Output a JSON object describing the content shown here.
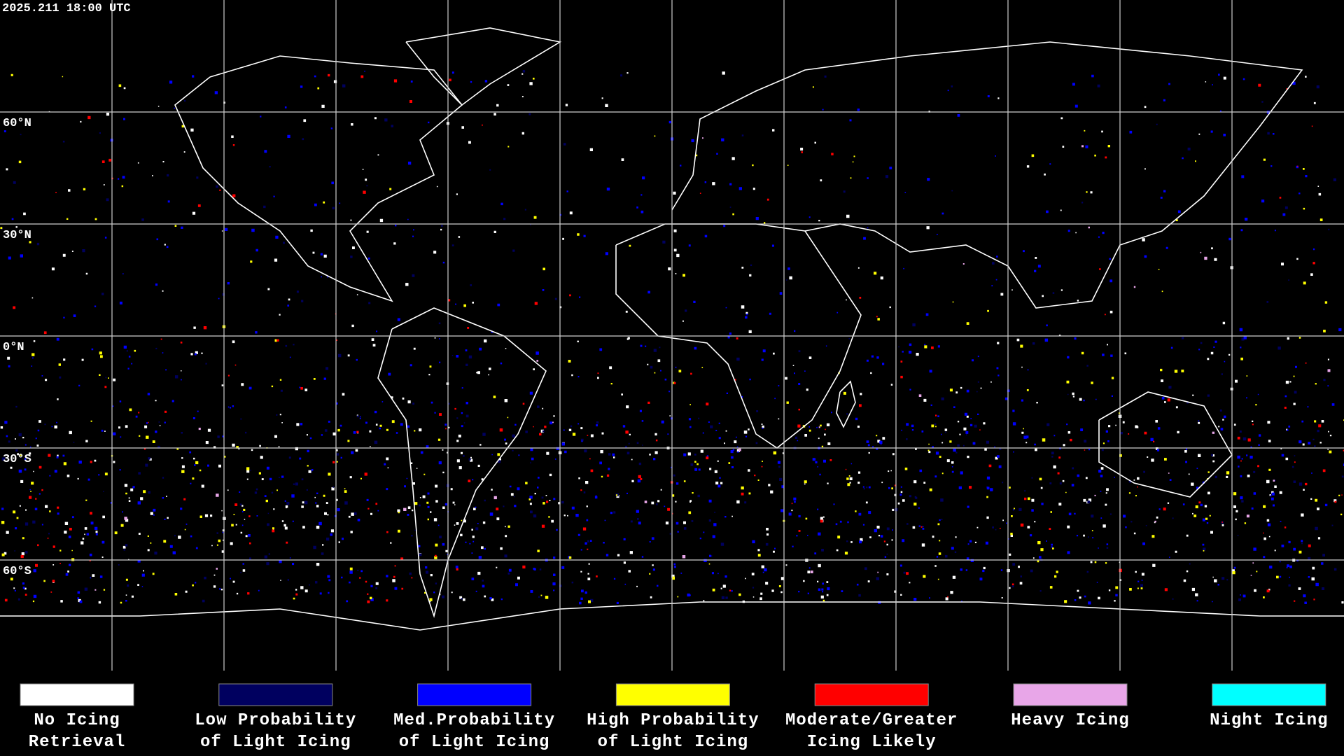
{
  "header": {
    "timestamp": "2025.211 18:00 UTC"
  },
  "map": {
    "latitude_labels": [
      "60°N",
      "30°N",
      "0°N",
      "30°S",
      "60°S"
    ]
  },
  "legend": [
    {
      "color": "#ffffff",
      "label": [
        "No Icing",
        "Retrieval"
      ]
    },
    {
      "color": "#00005f",
      "label": [
        "Low Probability",
        "of Light Icing"
      ]
    },
    {
      "color": "#0000ff",
      "label": [
        "Med.Probability",
        "of Light Icing"
      ]
    },
    {
      "color": "#ffff00",
      "label": [
        "High Probability",
        "of Light Icing"
      ]
    },
    {
      "color": "#ff0000",
      "label": [
        "Moderate/Greater",
        "Icing Likely"
      ]
    },
    {
      "color": "#e8a6e8",
      "label": [
        "Heavy Icing"
      ]
    },
    {
      "color": "#00ffff",
      "label": [
        "Night Icing"
      ]
    }
  ]
}
